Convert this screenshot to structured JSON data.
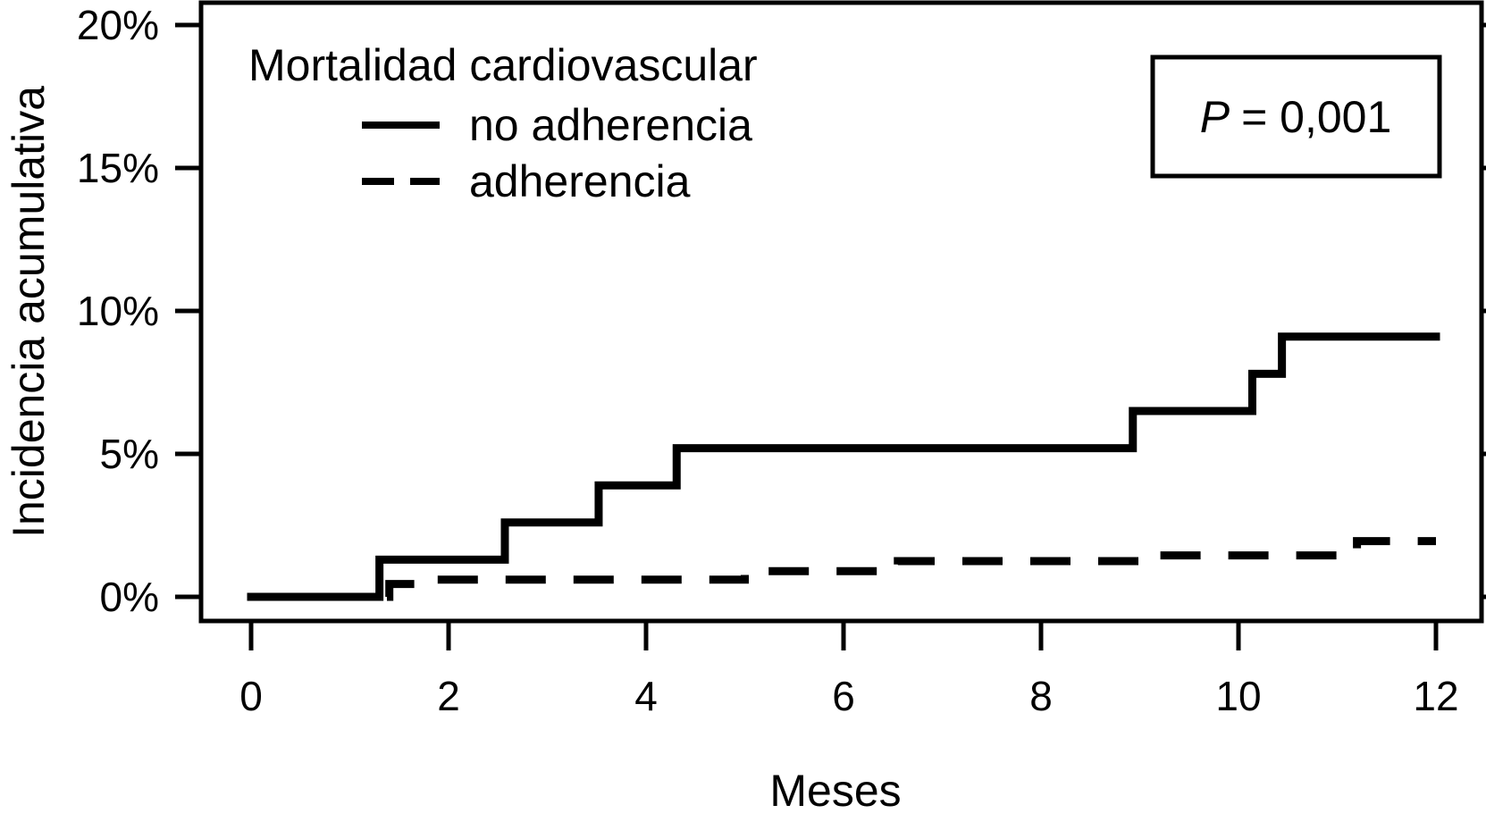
{
  "chart_data": {
    "type": "line",
    "step": true,
    "description": "Cumulative incidence (Kaplan-Meier style) step curves",
    "legend": {
      "title": "Mortalidad cardiovascular",
      "position": "top-left-inside"
    },
    "xlabel": "Meses",
    "ylabel": "Incidencia acumulativa",
    "xlim": [
      0,
      12
    ],
    "ylim": [
      0,
      20
    ],
    "grid": false,
    "ink_color": "#000000",
    "background_color": "#ffffff",
    "x_axis": {
      "ticks": [
        {
          "value": 0,
          "label": "0"
        },
        {
          "value": 2,
          "label": "2"
        },
        {
          "value": 4,
          "label": "4"
        },
        {
          "value": 6,
          "label": "6"
        },
        {
          "value": 8,
          "label": "8"
        },
        {
          "value": 10,
          "label": "10"
        },
        {
          "value": 12,
          "label": "12"
        }
      ]
    },
    "y_axis": {
      "unit": "%",
      "ticks": [
        {
          "value": 0,
          "label": "0%"
        },
        {
          "value": 5,
          "label": "5%"
        },
        {
          "value": 10,
          "label": "10%"
        },
        {
          "value": 15,
          "label": "15%"
        },
        {
          "value": 20,
          "label": "20%"
        }
      ],
      "right_ticks_mirrored": true
    },
    "series": [
      {
        "name": "no adherencia",
        "line_style": "solid",
        "x_start": 0,
        "y_start": 0,
        "x_end": 12,
        "unit": "% cumulative incidence",
        "steps": [
          {
            "month": 1.3,
            "level": 1.3
          },
          {
            "month": 2.57,
            "level": 2.6
          },
          {
            "month": 3.52,
            "level": 3.9
          },
          {
            "month": 4.31,
            "level": 5.2
          },
          {
            "month": 8.93,
            "level": 6.5
          },
          {
            "month": 10.14,
            "level": 7.8
          },
          {
            "month": 10.44,
            "level": 9.1
          }
        ],
        "final_level": 9.1
      },
      {
        "name": "adherencia",
        "line_style": "dashed",
        "x_start": 0,
        "y_start": 0,
        "x_end": 12,
        "unit": "% cumulative incidence",
        "steps": [
          {
            "month": 1.4,
            "level": 0.45
          },
          {
            "month": 1.8,
            "level": 0.6
          },
          {
            "month": 5.0,
            "level": 0.9
          },
          {
            "month": 6.55,
            "level": 1.25
          },
          {
            "month": 9.1,
            "level": 1.45
          },
          {
            "month": 11.2,
            "level": 1.95
          }
        ],
        "final_level": 1.95
      }
    ],
    "annotation": {
      "text": "P = 0,001",
      "symbol": "P",
      "rest": "= 0,001",
      "boxed": true
    }
  }
}
